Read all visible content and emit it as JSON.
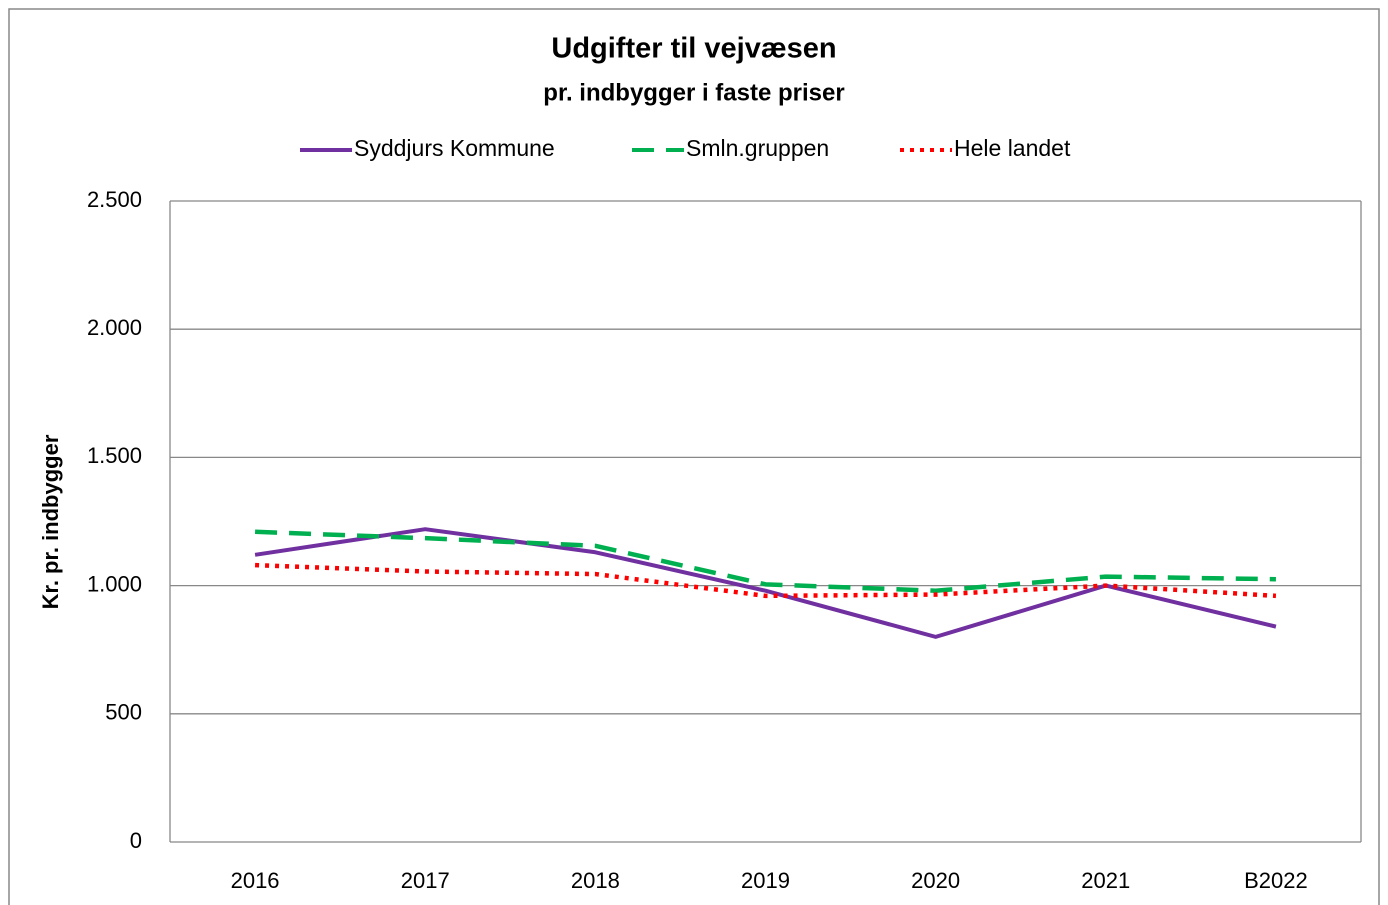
{
  "chart_data": {
    "type": "line",
    "title": "Udgifter til vejvæsen",
    "subtitle": "pr. indbygger i faste priser",
    "y_label": "Kr. pr. indbygger",
    "categories": [
      "2016",
      "2017",
      "2018",
      "2019",
      "2020",
      "2021",
      "B2022"
    ],
    "series": [
      {
        "name": "Syddjurs Kommune",
        "color": "#7030a0",
        "style": "solid",
        "values": [
          1120,
          1220,
          1130,
          980,
          800,
          1000,
          840
        ]
      },
      {
        "name": "Smln.gruppen",
        "color": "#00b050",
        "style": "dashed",
        "values": [
          1210,
          1185,
          1155,
          1005,
          980,
          1035,
          1025
        ]
      },
      {
        "name": "Hele landet",
        "color": "#ff0000",
        "style": "dotted",
        "values": [
          1080,
          1055,
          1045,
          960,
          965,
          1000,
          960
        ]
      }
    ],
    "ylim": [
      0,
      2500
    ],
    "yticks": [
      0,
      500,
      {
        "value": 1000,
        "label": "1.000"
      },
      {
        "value": 1500,
        "label": "1.500"
      },
      {
        "value": 2000,
        "label": "2.000"
      },
      {
        "value": 2500,
        "label": "2.500"
      }
    ],
    "grid": true,
    "legend": "top"
  }
}
